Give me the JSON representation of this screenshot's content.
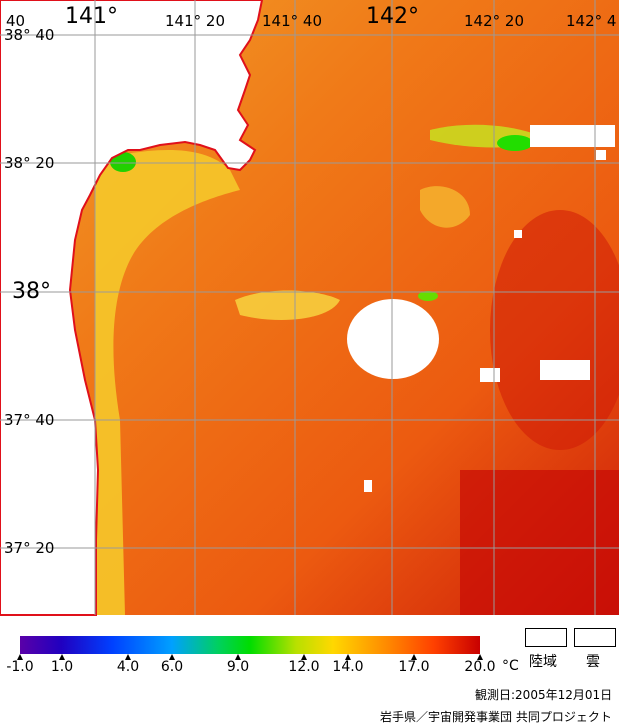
{
  "map": {
    "lon_labels": [
      "141°",
      "141° 20",
      "141° 40",
      "142°",
      "142° 20",
      "142° 4"
    ],
    "lat_labels": [
      "38° 40",
      "38° 20",
      "38°",
      "37° 40",
      "37° 20"
    ],
    "corner_label": "40"
  },
  "colorbar": {
    "ticks": [
      "-1.0",
      "1.0",
      "4.0",
      "6.0",
      "9.0",
      "12.0",
      "14.0",
      "17.0",
      "20.0"
    ],
    "unit": "°C",
    "colors": [
      "#5a00a8",
      "#0000c8",
      "#0050ff",
      "#00aaff",
      "#00c8a0",
      "#00dd00",
      "#a8e000",
      "#ffe000",
      "#ffa000",
      "#ff5000",
      "#c80000"
    ]
  },
  "legend": {
    "land_label": "陸域",
    "cloud_label": "雲"
  },
  "observation_date": "観測日:2005年12月01日",
  "credit": "岩手県／宇宙開発事業団 共同プロジェクト"
}
